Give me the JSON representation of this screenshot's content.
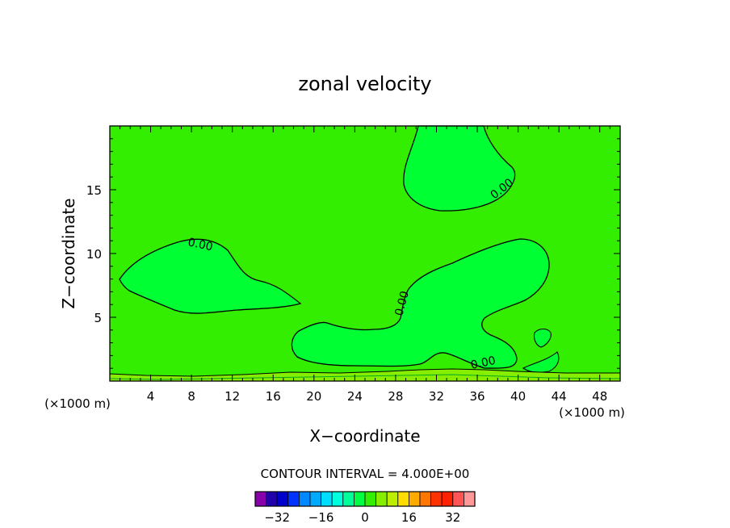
{
  "chart_data": {
    "type": "contour",
    "title": "zonal velocity",
    "xlabel": "X−coordinate",
    "ylabel": "Z−coordinate",
    "x_unit_left": "(×1000 m)",
    "x_unit_right": "(×1000 m)",
    "xlim": [
      0,
      50
    ],
    "ylim": [
      0,
      20
    ],
    "x_ticks": [
      4,
      8,
      12,
      16,
      20,
      24,
      28,
      32,
      36,
      40,
      44,
      48
    ],
    "y_ticks": [
      5,
      10,
      15
    ],
    "contour_label": "0.00",
    "contour_interval_text": "CONTOUR INTERVAL = 4.000E+00",
    "background_color": "#33ee00",
    "positive_region_color": "#00ff33",
    "colorbar": {
      "colors": [
        "#8800aa",
        "#2200aa",
        "#0000cc",
        "#0033ff",
        "#0088ff",
        "#00aaff",
        "#00ddff",
        "#00ffdd",
        "#00ff99",
        "#00ff44",
        "#33ee00",
        "#88ee00",
        "#bbee00",
        "#ffdd00",
        "#ffaa00",
        "#ff7700",
        "#ff3300",
        "#ff2200",
        "#ff5555",
        "#ff9999"
      ],
      "tick_labels": [
        "−32",
        "−16",
        "0",
        "16",
        "32"
      ],
      "tick_values": [
        -32,
        -16,
        0,
        16,
        32
      ]
    }
  }
}
